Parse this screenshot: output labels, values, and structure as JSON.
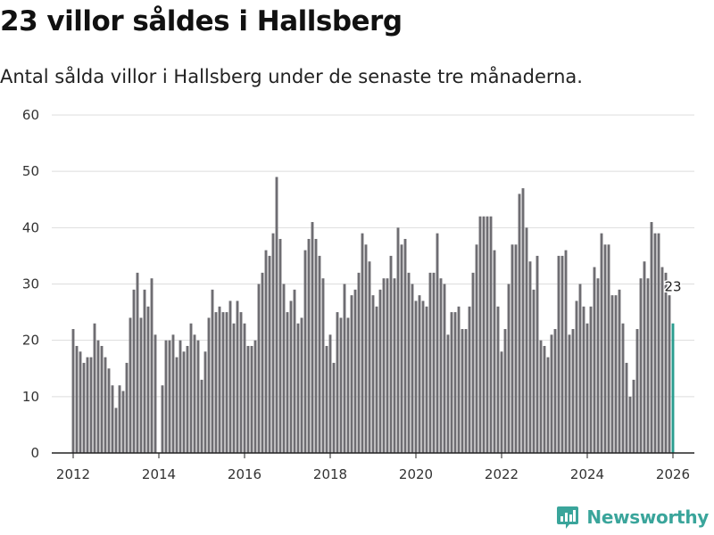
{
  "title": "23 villor såldes i Hallsberg",
  "subtitle": "Antal sålda villor i Hallsberg under de senaste tre månaderna.",
  "brand": {
    "name": "Newsworthy",
    "icon": "newsworthy-logo-icon",
    "color": "#3aa59b"
  },
  "colors": {
    "bar": "#6e6d72",
    "highlight": "#2a9d8f",
    "grid": "#dddddd",
    "axis": "#222222"
  },
  "chart_data": {
    "type": "bar",
    "title": "23 villor såldes i Hallsberg",
    "subtitle": "Antal sålda villor i Hallsberg under de senaste tre månaderna.",
    "xlabel": "",
    "ylabel": "",
    "ylim": [
      0,
      60
    ],
    "yticks": [
      "0",
      "10",
      "20",
      "30",
      "40",
      "50",
      "60"
    ],
    "xlim": [
      2011.5,
      2026.5
    ],
    "xticks": [
      "2012",
      "2014",
      "2016",
      "2018",
      "2020",
      "2022",
      "2024",
      "2026"
    ],
    "grid": true,
    "start": "2012-01",
    "frequency": "monthly",
    "highlight_label": "23",
    "values": [
      22,
      19,
      18,
      16,
      17,
      17,
      23,
      20,
      19,
      17,
      15,
      12,
      8,
      12,
      11,
      16,
      24,
      29,
      32,
      24,
      29,
      26,
      31,
      21,
      0,
      12,
      20,
      20,
      21,
      17,
      20,
      18,
      19,
      23,
      21,
      20,
      13,
      18,
      24,
      29,
      25,
      26,
      25,
      25,
      27,
      23,
      27,
      25,
      23,
      19,
      19,
      20,
      30,
      32,
      36,
      35,
      39,
      49,
      38,
      30,
      25,
      27,
      29,
      23,
      24,
      36,
      38,
      41,
      38,
      35,
      31,
      19,
      21,
      16,
      25,
      24,
      30,
      24,
      28,
      29,
      32,
      39,
      37,
      34,
      28,
      26,
      29,
      31,
      31,
      35,
      31,
      40,
      37,
      38,
      32,
      30,
      27,
      28,
      27,
      26,
      32,
      32,
      39,
      31,
      30,
      21,
      25,
      25,
      26,
      22,
      22,
      26,
      32,
      37,
      42,
      42,
      42,
      42,
      36,
      26,
      18,
      22,
      30,
      37,
      37,
      46,
      47,
      40,
      34,
      29,
      35,
      20,
      19,
      17,
      21,
      22,
      35,
      35,
      36,
      21,
      22,
      27,
      30,
      26,
      23,
      26,
      33,
      31,
      39,
      37,
      37,
      28,
      28,
      29,
      23,
      16,
      10,
      13,
      22,
      31,
      34,
      31,
      41,
      39,
      39,
      33,
      32,
      28,
      23
    ]
  }
}
